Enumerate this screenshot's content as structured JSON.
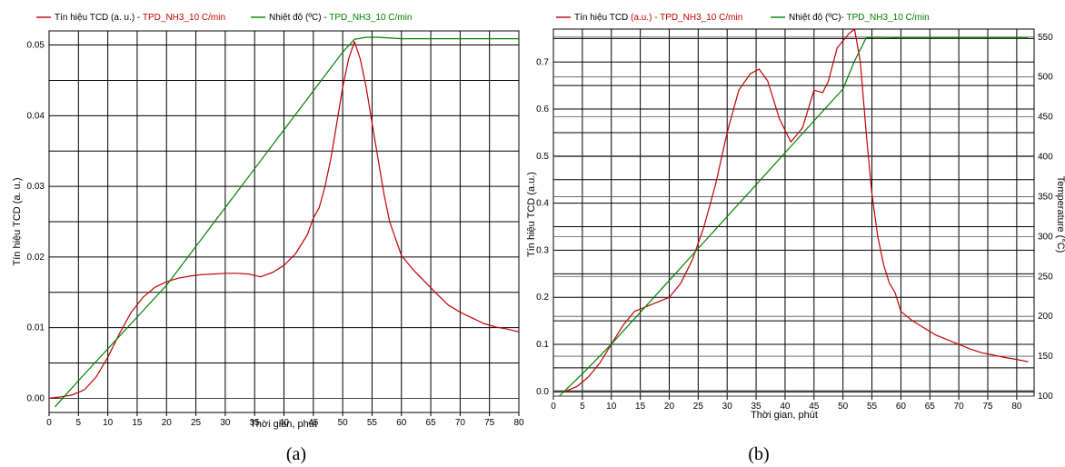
{
  "chart_data": [
    {
      "type": "line",
      "caption": "(a)",
      "legend": [
        {
          "prefix": "Tín hiệu TCD (a. u.) - ",
          "name": "TPD_NH3_10 C/min",
          "color": "#c00000",
          "prefix_color": "#000000"
        },
        {
          "prefix": "Nhiệt độ (ºC) - ",
          "name": "TPD_NH3_10 C/min",
          "color": "#008000",
          "prefix_color": "#000000"
        }
      ],
      "xlabel": "Thời gian, phút",
      "ylabel": "Tín hiệu TCD (a. u.)",
      "xlim": [
        0,
        80
      ],
      "ylim": [
        -0.002,
        0.052
      ],
      "xticks": [
        0,
        5,
        10,
        15,
        20,
        25,
        30,
        35,
        40,
        45,
        50,
        55,
        60,
        65,
        70,
        75,
        80
      ],
      "yticks": [
        "0.00",
        "0.01",
        "0.02",
        "0.03",
        "0.04",
        "0.05"
      ],
      "yticks_values": [
        0,
        0.01,
        0.02,
        0.03,
        0.04,
        0.05
      ],
      "series": [
        {
          "name": "Tín hiệu TCD",
          "color": "#c00000",
          "x": [
            0,
            2,
            4,
            6,
            8,
            10,
            12,
            14,
            16,
            18,
            20,
            22,
            24,
            26,
            28,
            30,
            32,
            34,
            36,
            38,
            40,
            42,
            44,
            45,
            46,
            47,
            48,
            49,
            50,
            51,
            52,
            53,
            54,
            55,
            56,
            57,
            58,
            60,
            62,
            64,
            66,
            68,
            70,
            72,
            74,
            76,
            78,
            80
          ],
          "y": [
            0,
            0.0002,
            0.0005,
            0.0012,
            0.003,
            0.0058,
            0.0092,
            0.0122,
            0.0143,
            0.0157,
            0.0165,
            0.017,
            0.0173,
            0.0175,
            0.0176,
            0.0177,
            0.0177,
            0.0176,
            0.0172,
            0.0178,
            0.0188,
            0.0205,
            0.0232,
            0.0255,
            0.027,
            0.03,
            0.034,
            0.039,
            0.044,
            0.048,
            0.0505,
            0.048,
            0.044,
            0.039,
            0.034,
            0.029,
            0.025,
            0.0202,
            0.0182,
            0.0165,
            0.0148,
            0.0132,
            0.0122,
            0.0114,
            0.0106,
            0.0101,
            0.0098,
            0.0094
          ]
        },
        {
          "name": "Nhiệt độ",
          "color": "#008000",
          "x": [
            1,
            5,
            10,
            15,
            20,
            25,
            30,
            35,
            40,
            45,
            50,
            52,
            54,
            56,
            60,
            65,
            70,
            75,
            80
          ],
          "y": [
            -0.0012,
            0.0025,
            0.007,
            0.0115,
            0.016,
            0.0215,
            0.027,
            0.0325,
            0.038,
            0.0435,
            0.049,
            0.0508,
            0.0511,
            0.0511,
            0.0509,
            0.0509,
            0.0509,
            0.0509,
            0.0509
          ]
        }
      ]
    },
    {
      "type": "line",
      "caption": "(b)",
      "legend": [
        {
          "prefix": "Tín hiệu TCD ",
          "name": "(a.u.) - TPD_NH3_10 C/min",
          "color": "#c00000",
          "prefix_color": "#000000"
        },
        {
          "prefix": "Nhiệt độ (ºC)- ",
          "name": "TPD_NH3_10 C/min",
          "color": "#008000",
          "prefix_color": "#000000"
        }
      ],
      "xlabel": "Thời gian, phút",
      "ylabel": "Tín hiệu TCD (a.u.)",
      "y2label": "Temperature (°C)",
      "xlim": [
        0,
        83
      ],
      "ylim": [
        -0.01,
        0.77
      ],
      "y2lim": [
        100,
        560
      ],
      "xticks": [
        0,
        5,
        10,
        15,
        20,
        25,
        30,
        35,
        40,
        45,
        50,
        55,
        60,
        65,
        70,
        75,
        80
      ],
      "yticks": [
        "0.0",
        "0.1",
        "0.2",
        "0.3",
        "0.4",
        "0.5",
        "0.6",
        "0.7"
      ],
      "yticks_values": [
        0,
        0.1,
        0.2,
        0.3,
        0.4,
        0.5,
        0.6,
        0.7
      ],
      "y2ticks": [
        "100",
        "150",
        "200",
        "250",
        "300",
        "350",
        "400",
        "450",
        "500",
        "550"
      ],
      "y2ticks_values": [
        100,
        150,
        200,
        250,
        300,
        350,
        400,
        450,
        500,
        550
      ],
      "series": [
        {
          "name": "Tín hiệu TCD",
          "color": "#c00000",
          "x": [
            2,
            4,
            6,
            8,
            10,
            12,
            14,
            16,
            18,
            20,
            22,
            24,
            26,
            28,
            30,
            32,
            34,
            35.5,
            37,
            39,
            41,
            43,
            45,
            46.5,
            47.5,
            49,
            51,
            52,
            53,
            54,
            55,
            56,
            57,
            58,
            59,
            60,
            62,
            64,
            66,
            68,
            70,
            72,
            74,
            76,
            78,
            80,
            82
          ],
          "y": [
            0,
            0.01,
            0.03,
            0.06,
            0.1,
            0.14,
            0.17,
            0.18,
            0.19,
            0.2,
            0.23,
            0.28,
            0.35,
            0.44,
            0.55,
            0.64,
            0.675,
            0.685,
            0.66,
            0.58,
            0.53,
            0.56,
            0.64,
            0.635,
            0.66,
            0.73,
            0.76,
            0.77,
            0.7,
            0.55,
            0.42,
            0.33,
            0.27,
            0.23,
            0.21,
            0.17,
            0.15,
            0.135,
            0.12,
            0.11,
            0.1,
            0.09,
            0.082,
            0.077,
            0.072,
            0.068,
            0.063
          ]
        },
        {
          "name": "Nhiệt độ",
          "color": "#008000",
          "x": [
            1,
            5,
            10,
            15,
            20,
            25,
            30,
            35,
            40,
            45,
            50,
            52,
            54,
            56,
            60,
            65,
            70,
            75,
            80,
            82
          ],
          "y": [
            100,
            128,
            165,
            205,
            245,
            285,
            325,
            365,
            405,
            445,
            485,
            520,
            549,
            550,
            549,
            549,
            549,
            549,
            549,
            549
          ]
        }
      ]
    }
  ]
}
